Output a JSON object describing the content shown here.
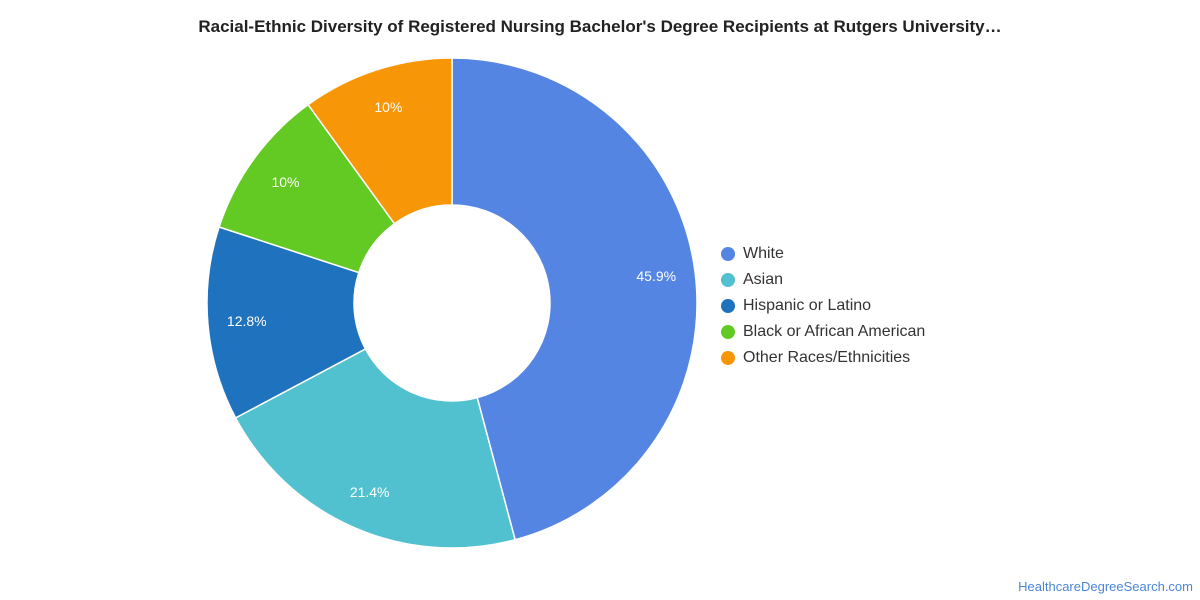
{
  "chart_data": {
    "type": "pie",
    "title": "Racial-Ethnic Diversity of Registered Nursing Bachelor's Degree Recipients at Rutgers University…",
    "donut": true,
    "legend_position": "right",
    "slices": [
      {
        "label": "White",
        "value": 45.9,
        "display": "45.9%",
        "color": "#5585e3"
      },
      {
        "label": "Asian",
        "value": 21.4,
        "display": "21.4%",
        "color": "#52c1cf"
      },
      {
        "label": "Hispanic or Latino",
        "value": 12.8,
        "display": "12.8%",
        "color": "#1f72bd"
      },
      {
        "label": "Black or African American",
        "value": 10,
        "display": "10%",
        "color": "#63ca24"
      },
      {
        "label": "Other Races/Ethnicities",
        "value": 10,
        "display": "10%",
        "color": "#f79606"
      }
    ]
  },
  "source": {
    "text": "HealthcareDegreeSearch.com"
  }
}
